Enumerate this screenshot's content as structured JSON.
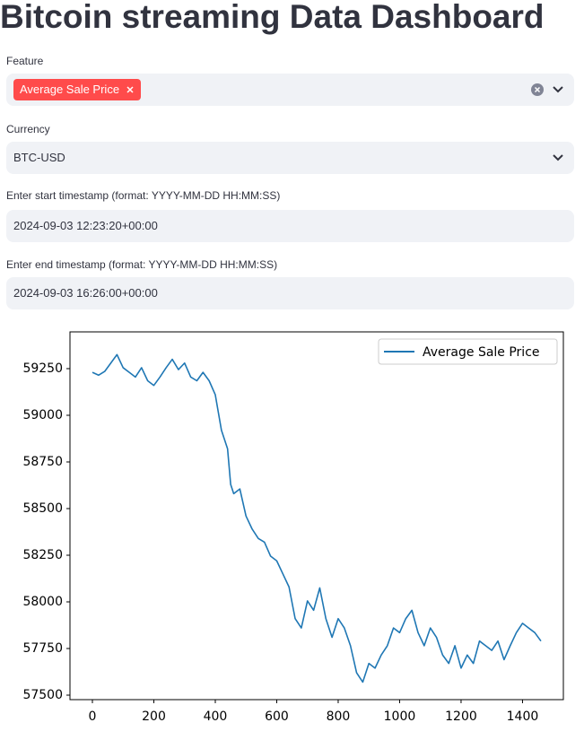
{
  "header": {
    "title": "Bitcoin streaming Data Dashboard"
  },
  "form": {
    "feature": {
      "label": "Feature",
      "selected": [
        "Average Sale Price"
      ]
    },
    "currency": {
      "label": "Currency",
      "value": "BTC-USD"
    },
    "start": {
      "label": "Enter start timestamp (format: YYYY-MM-DD HH:MM:SS)",
      "value": "2024-09-03 12:23:20+00:00"
    },
    "end": {
      "label": "Enter end timestamp (format: YYYY-MM-DD HH:MM:SS)",
      "value": "2024-09-03 16:26:00+00:00"
    }
  },
  "chart_data": {
    "type": "line",
    "x": [
      0,
      20,
      40,
      60,
      80,
      100,
      120,
      140,
      160,
      180,
      200,
      220,
      240,
      260,
      280,
      300,
      320,
      340,
      360,
      380,
      400,
      410,
      420,
      440,
      450,
      460,
      480,
      500,
      520,
      540,
      560,
      580,
      600,
      620,
      640,
      660,
      680,
      700,
      720,
      740,
      760,
      780,
      800,
      820,
      840,
      860,
      880,
      900,
      920,
      940,
      960,
      980,
      1000,
      1020,
      1040,
      1060,
      1080,
      1100,
      1120,
      1140,
      1160,
      1180,
      1200,
      1220,
      1240,
      1260,
      1280,
      1300,
      1320,
      1340,
      1360,
      1380,
      1400,
      1420,
      1440,
      1460
    ],
    "series": [
      {
        "name": "Average Sale Price",
        "color": "#1f77b4",
        "values": [
          59230,
          59215,
          59235,
          59280,
          59325,
          59255,
          59230,
          59205,
          59255,
          59185,
          59160,
          59205,
          59255,
          59300,
          59245,
          59280,
          59205,
          59185,
          59230,
          59185,
          59110,
          59015,
          58920,
          58820,
          58630,
          58580,
          58605,
          58460,
          58390,
          58340,
          58320,
          58245,
          58220,
          58150,
          58080,
          57910,
          57860,
          58005,
          57955,
          58075,
          57910,
          57810,
          57910,
          57860,
          57765,
          57620,
          57570,
          57670,
          57645,
          57715,
          57765,
          57860,
          57835,
          57910,
          57955,
          57835,
          57765,
          57860,
          57810,
          57715,
          57670,
          57765,
          57645,
          57715,
          57670,
          57790,
          57765,
          57740,
          57790,
          57690,
          57765,
          57835,
          57885,
          57860,
          57835,
          57790
        ]
      }
    ],
    "xlim": [
      -73,
      1533
    ],
    "xticks": [
      0,
      200,
      400,
      600,
      800,
      1000,
      1200,
      1400
    ],
    "ylim": [
      57476,
      59447
    ],
    "yticks": [
      57500,
      57750,
      58000,
      58250,
      58500,
      58750,
      59000,
      59250
    ],
    "legend": "upper right"
  }
}
